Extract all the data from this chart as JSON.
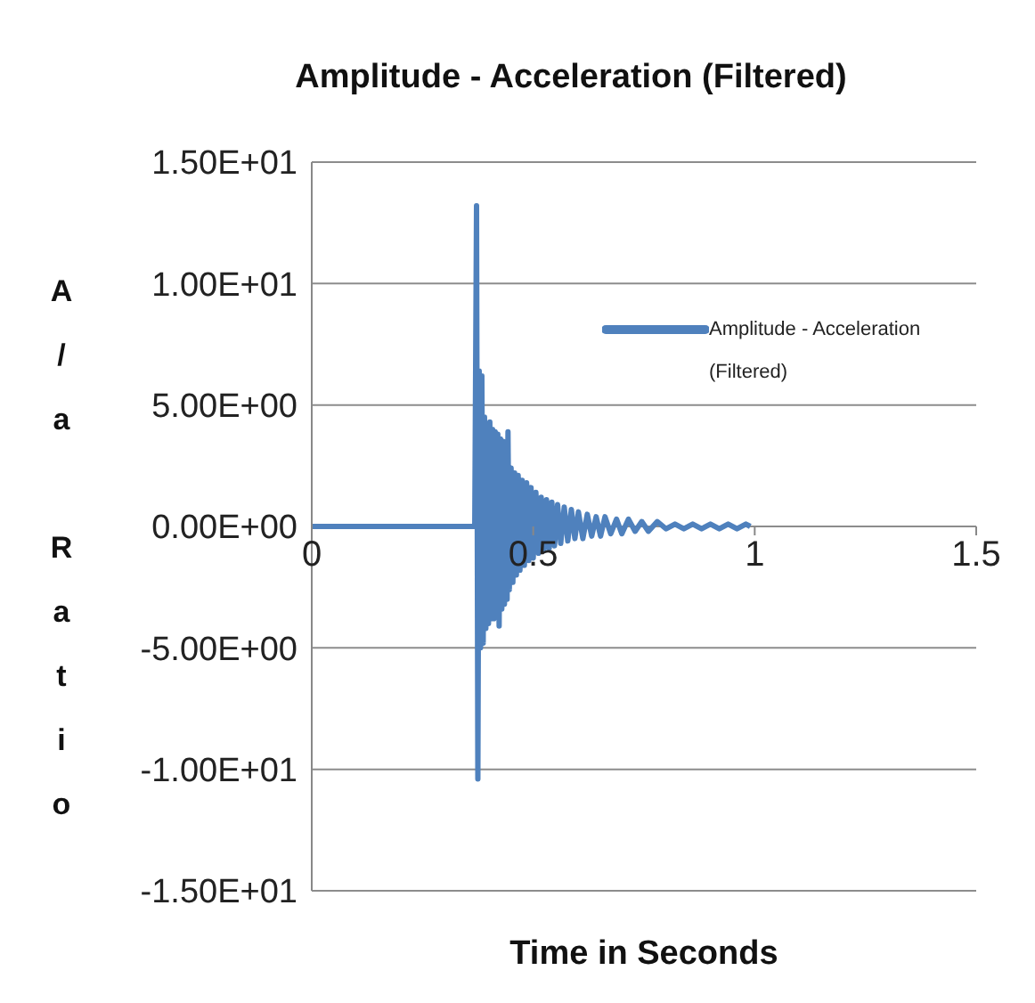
{
  "chart_data": {
    "type": "line",
    "title": "Amplitude - Acceleration (Filtered)",
    "xlabel": "Time in Seconds",
    "ylabel": "A/a Ratio",
    "xlim": [
      0,
      1.5
    ],
    "xticks": [
      0,
      0.5,
      1,
      1.5
    ],
    "ylim": [
      -15,
      15
    ],
    "yticks": [
      {
        "value": -15,
        "label": "-1.50E+01"
      },
      {
        "value": -10,
        "label": "-1.00E+01"
      },
      {
        "value": -5,
        "label": "-5.00E+00"
      },
      {
        "value": 0,
        "label": "0.00E+00"
      },
      {
        "value": 5,
        "label": "5.00E+00"
      },
      {
        "value": 10,
        "label": "1.00E+01"
      },
      {
        "value": 15,
        "label": "1.50E+01"
      }
    ],
    "grid": "y",
    "legend": "top right",
    "marker": "none",
    "line_style": "solid",
    "series": [
      {
        "name": "Amplitude - Acceleration (Filtered)",
        "color": "#4f81bd",
        "x": [
          0,
          0.368,
          0.372,
          0.375,
          0.378,
          0.381,
          0.384,
          0.387,
          0.39,
          0.393,
          0.396,
          0.399,
          0.402,
          0.405,
          0.408,
          0.411,
          0.414,
          0.417,
          0.42,
          0.423,
          0.426,
          0.429,
          0.432,
          0.435,
          0.438,
          0.441,
          0.443,
          0.446,
          0.45,
          0.454,
          0.458,
          0.462,
          0.466,
          0.47,
          0.475,
          0.48,
          0.485,
          0.49,
          0.495,
          0.5,
          0.506,
          0.512,
          0.518,
          0.524,
          0.53,
          0.536,
          0.542,
          0.548,
          0.555,
          0.562,
          0.57,
          0.578,
          0.586,
          0.594,
          0.602,
          0.612,
          0.622,
          0.632,
          0.642,
          0.652,
          0.662,
          0.675,
          0.688,
          0.7,
          0.715,
          0.73,
          0.745,
          0.76,
          0.78,
          0.8,
          0.82,
          0.84,
          0.86,
          0.88,
          0.9,
          0.92,
          0.94,
          0.96,
          0.98,
          0.99
        ],
        "values": [
          0,
          0,
          13.2,
          -10.4,
          6.4,
          -5.0,
          6.2,
          -4.8,
          4.5,
          -4.2,
          4.2,
          -4.0,
          4.3,
          -3.8,
          4.0,
          -3.8,
          3.9,
          -3.6,
          3.8,
          -4.1,
          3.6,
          -3.4,
          3.5,
          -3.2,
          3.4,
          -3.0,
          3.9,
          -2.6,
          2.4,
          -2.3,
          2.2,
          -2.0,
          2.1,
          -1.8,
          1.9,
          -1.6,
          1.8,
          -1.4,
          1.6,
          -1.3,
          1.4,
          -1.1,
          1.2,
          -1.0,
          1.1,
          -0.9,
          1.0,
          -0.8,
          0.9,
          -0.7,
          0.8,
          -0.6,
          0.7,
          -0.5,
          0.6,
          -0.5,
          0.5,
          -0.4,
          0.4,
          -0.4,
          0.4,
          -0.3,
          0.3,
          -0.3,
          0.3,
          -0.2,
          0.2,
          -0.2,
          0.2,
          -0.1,
          0.1,
          -0.1,
          0.1,
          -0.1,
          0.1,
          -0.1,
          0.1,
          -0.1,
          0.1,
          0
        ]
      }
    ]
  }
}
